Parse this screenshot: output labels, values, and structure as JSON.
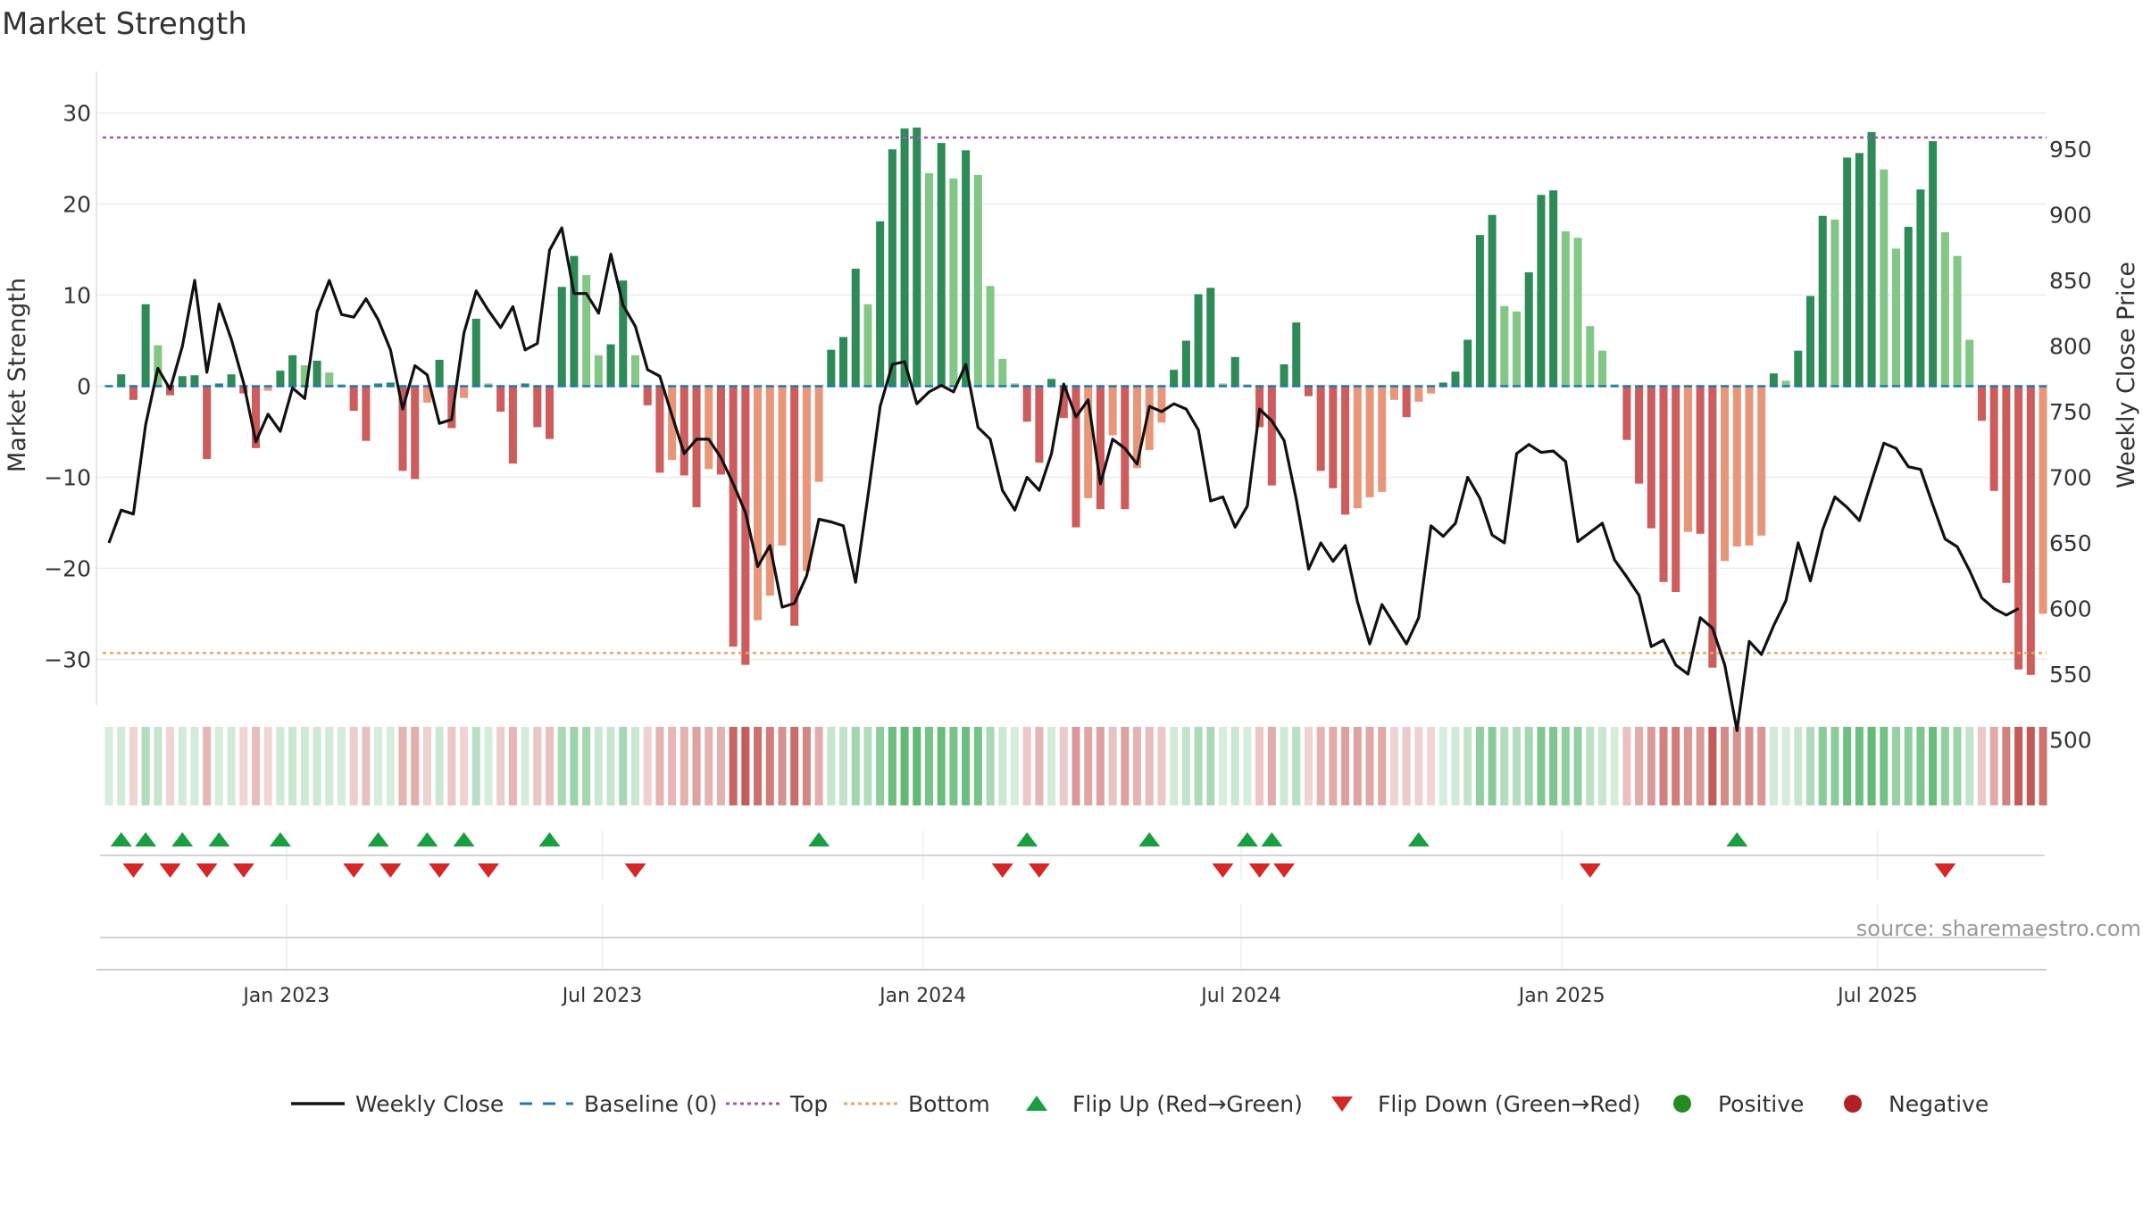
{
  "chart_data": {
    "type": "bar",
    "title": "Market Strength",
    "ylabel": "Market Strength",
    "y2label": "Weekly Close Price",
    "ylim": [
      -35,
      34
    ],
    "y2lim": [
      475,
      965
    ],
    "yticks": [
      30,
      20,
      10,
      0,
      -10,
      -20,
      -30
    ],
    "ytick_labels": [
      "30",
      "20",
      "10",
      "0",
      "−10",
      "−20",
      "−30"
    ],
    "y2ticks": [
      950,
      900,
      850,
      800,
      750,
      700,
      650,
      600,
      550,
      500
    ],
    "top_level": 27.3,
    "bottom_level": -29.3,
    "x_ticks": [
      {
        "index": 14.5,
        "label": "Jan 2023"
      },
      {
        "index": 40.3,
        "label": "Jul 2023"
      },
      {
        "index": 66.5,
        "label": "Jan 2024"
      },
      {
        "index": 92.5,
        "label": "Jul 2024"
      },
      {
        "index": 118.7,
        "label": "Jan 2025"
      },
      {
        "index": 144.5,
        "label": "Jul 2025"
      }
    ],
    "strength": [
      0,
      1.3,
      -1.5,
      9,
      4.5,
      -1,
      1.1,
      1.2,
      -8,
      0.3,
      1.3,
      -0.8,
      -6.8,
      -0.5,
      1.7,
      3.4,
      2.3,
      2.8,
      1.5,
      0.2,
      -2.7,
      -6,
      0.3,
      0.4,
      -9.3,
      -10.2,
      -1.8,
      2.9,
      -4.6,
      -1.3,
      7.4,
      0.3,
      -2.8,
      -8.5,
      0.3,
      -4.5,
      -5.8,
      10.9,
      14.3,
      12.2,
      3.4,
      4.6,
      11.6,
      3.4,
      -2.1,
      -9.5,
      -8.1,
      -9.8,
      -13.3,
      -9.1,
      -9.7,
      -28.6,
      -30.6,
      -25.7,
      -23,
      -17.5,
      -26.3,
      -20.3,
      -10.5,
      4,
      5.4,
      12.9,
      9,
      18.1,
      26,
      28.3,
      28.4,
      23.4,
      26.7,
      22.8,
      25.9,
      23.2,
      11,
      3,
      0.3,
      -3.9,
      -8.4,
      0.8,
      -3.5,
      -15.5,
      -12.3,
      -13.5,
      -5.4,
      -13.5,
      -9,
      -7,
      -4,
      1.8,
      5,
      10.1,
      10.8,
      0.3,
      3.2,
      0.2,
      -4.5,
      -10.9,
      2.4,
      7,
      -1.1,
      -9.3,
      -11.2,
      -14.1,
      -13.4,
      -12.2,
      -11.6,
      -1.5,
      -3.4,
      -1.7,
      -0.8,
      0.4,
      1.6,
      5.1,
      16.6,
      18.8,
      8.8,
      8.2,
      12.5,
      21,
      21.5,
      17,
      16.3,
      6.6,
      3.9,
      0.2,
      -5.9,
      -10.7,
      -15.6,
      -21.5,
      -22.6,
      -16,
      -16.2,
      -30.9,
      -19.2,
      -17.6,
      -17.5,
      -16.4,
      1.4,
      0.6,
      3.9,
      9.9,
      18.7,
      18.3,
      25.1,
      25.6,
      27.9,
      23.8,
      15.1,
      17.5,
      21.6,
      26.9,
      16.9,
      14.3,
      5.1,
      -3.8,
      -11.5,
      -21.6,
      -31.1,
      -31.7,
      -25
    ],
    "weekly_close": [
      650,
      675,
      672,
      740,
      783,
      767,
      800,
      850,
      780,
      832,
      805,
      772,
      727,
      748,
      735,
      768,
      760,
      826,
      850,
      824,
      822,
      836,
      820,
      797,
      752,
      785,
      778,
      741,
      744,
      810,
      842,
      827,
      814,
      830,
      797,
      802,
      873,
      890,
      840,
      840,
      825,
      870,
      831,
      815,
      782,
      777,
      747,
      718,
      729,
      729,
      715,
      695,
      673,
      632,
      648,
      601,
      604,
      625,
      668,
      666,
      663,
      620,
      685,
      754,
      786,
      788,
      756,
      765,
      770,
      765,
      786,
      738,
      729,
      690,
      675,
      700,
      690,
      718,
      771,
      746,
      759,
      695,
      729,
      722,
      710,
      754,
      750,
      756,
      752,
      736,
      682,
      685,
      662,
      678,
      752,
      743,
      728,
      683,
      630,
      650,
      636,
      648,
      605,
      573,
      603,
      588,
      573,
      593,
      663,
      655,
      665,
      700,
      684,
      656,
      650,
      718,
      725,
      719,
      720,
      712,
      651,
      658,
      665,
      637,
      624,
      610,
      571,
      576,
      557,
      550,
      593,
      585,
      557,
      507,
      575,
      565,
      587,
      606,
      650,
      621,
      660,
      685,
      677,
      667,
      697,
      726,
      722,
      708,
      706,
      679,
      653,
      647,
      629,
      608,
      600,
      595,
      600
    ],
    "series": [
      {
        "name": "Weekly Close",
        "color": "#111111"
      },
      {
        "name": "Baseline (0)",
        "color": "#1f77b4"
      },
      {
        "name": "Top",
        "color": "#9b59b6"
      },
      {
        "name": "Bottom",
        "color": "#f0a35e"
      }
    ],
    "legend": [
      {
        "label": "Weekly Close",
        "kind": "line"
      },
      {
        "label": "Baseline (0)",
        "kind": "dash"
      },
      {
        "label": "Top",
        "kind": "dotted-purple"
      },
      {
        "label": "Bottom",
        "kind": "dotted-orange"
      },
      {
        "label": "Flip Up (Red→Green)",
        "kind": "triangle-up"
      },
      {
        "label": "Flip Down (Green→Red)",
        "kind": "triangle-down"
      },
      {
        "label": "Positive",
        "kind": "dot-green"
      },
      {
        "label": "Negative",
        "kind": "dot-red"
      }
    ],
    "flip_up_indices": [
      1,
      3,
      6,
      9,
      14,
      22,
      26,
      29,
      36,
      58,
      75,
      85,
      93,
      95,
      107,
      133
    ],
    "flip_down_indices": [
      2,
      5,
      8,
      11,
      20,
      23,
      27,
      31,
      43,
      73,
      76,
      91,
      94,
      96,
      121,
      150
    ],
    "source": "source: sharemaestro.com",
    "colors": {
      "pos_dark": "#2e8b57",
      "pos_light": "#82c785",
      "neg_dark": "#cd5c5c",
      "neg_light": "#e8967a",
      "heat_green": "#4caf63",
      "heat_red": "#c0504d",
      "flip_up": "#1a9e3f",
      "flip_down": "#d62728",
      "positive_dot": "#228b22",
      "negative_dot": "#b22222"
    }
  }
}
